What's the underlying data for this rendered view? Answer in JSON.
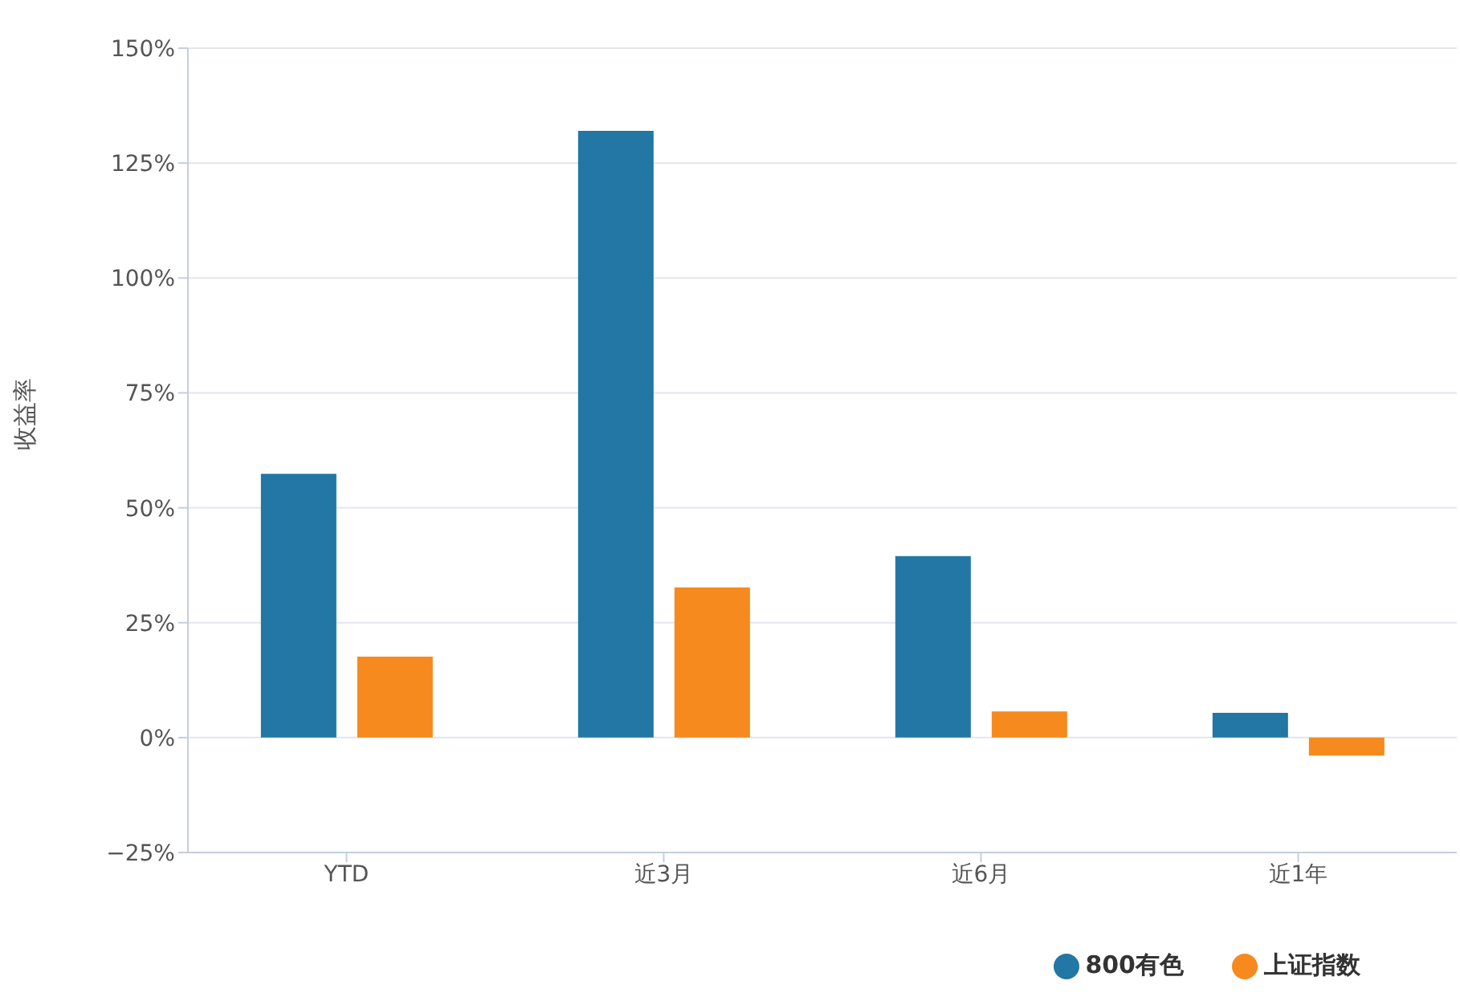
{
  "chart_data": {
    "type": "bar",
    "ylabel": "收益率",
    "categories": [
      "YTD",
      "近3月",
      "近6月",
      "近1年"
    ],
    "series": [
      {
        "name": "800有色",
        "color": "#2277a4",
        "values": [
          57.4,
          132.0,
          39.5,
          5.4
        ]
      },
      {
        "name": "上证指数",
        "color": "#f68a1e",
        "values": [
          17.6,
          32.7,
          5.7,
          -3.9
        ]
      }
    ],
    "ylim": [
      -25,
      150
    ],
    "yticks": [
      {
        "value": -25,
        "label": "−25%"
      },
      {
        "value": 0,
        "label": "0%"
      },
      {
        "value": 25,
        "label": "25%"
      },
      {
        "value": 50,
        "label": "50%"
      },
      {
        "value": 75,
        "label": "75%"
      },
      {
        "value": 100,
        "label": "100%"
      },
      {
        "value": 125,
        "label": "125%"
      },
      {
        "value": 150,
        "label": "150%"
      }
    ],
    "grid": "y",
    "legend": "bottom right"
  }
}
